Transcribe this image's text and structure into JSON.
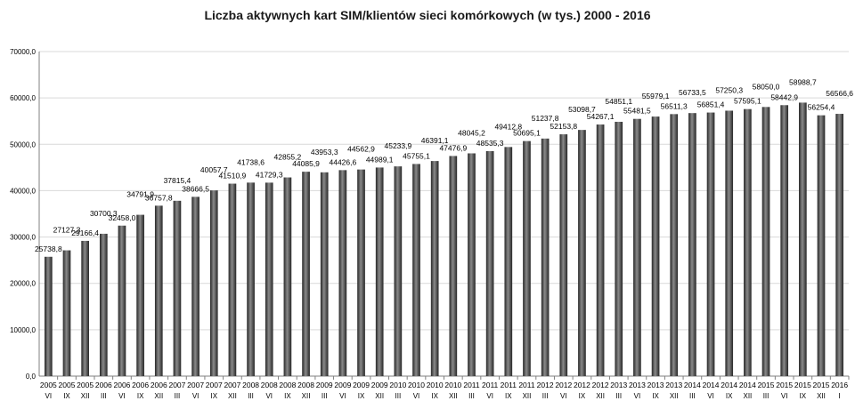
{
  "chart_data": {
    "type": "bar",
    "title": "Liczba aktywnych kart SIM/klientów sieci komórkowych (w tys.) 2000 - 2016",
    "xlabel": "",
    "ylabel": "",
    "ylim": [
      0,
      70000
    ],
    "y_ticks": [
      "0,0",
      "10000,0",
      "20000,0",
      "30000,0",
      "40000,0",
      "50000,0",
      "60000,0",
      "70000,0"
    ],
    "grid": "horizontal",
    "legend": "none",
    "colors": {
      "bar": "#4a4a4a",
      "bar_dark": "#262626",
      "bar_light": "#8a8a8a",
      "grid": "#d9d9d9",
      "axis": "#808080"
    },
    "categories": [
      {
        "year": "2005",
        "quarter": "VI"
      },
      {
        "year": "2005",
        "quarter": "IX"
      },
      {
        "year": "2005",
        "quarter": "XII"
      },
      {
        "year": "2006",
        "quarter": "III"
      },
      {
        "year": "2006",
        "quarter": "VI"
      },
      {
        "year": "2006",
        "quarter": "IX"
      },
      {
        "year": "2006",
        "quarter": "XII"
      },
      {
        "year": "2007",
        "quarter": "III"
      },
      {
        "year": "2007",
        "quarter": "VI"
      },
      {
        "year": "2007",
        "quarter": "IX"
      },
      {
        "year": "2007",
        "quarter": "XII"
      },
      {
        "year": "2008",
        "quarter": "III"
      },
      {
        "year": "2008",
        "quarter": "VI"
      },
      {
        "year": "2008",
        "quarter": "IX"
      },
      {
        "year": "2008",
        "quarter": "XII"
      },
      {
        "year": "2009",
        "quarter": "III"
      },
      {
        "year": "2009",
        "quarter": "VI"
      },
      {
        "year": "2009",
        "quarter": "IX"
      },
      {
        "year": "2009",
        "quarter": "XII"
      },
      {
        "year": "2010",
        "quarter": "III"
      },
      {
        "year": "2010",
        "quarter": "VI"
      },
      {
        "year": "2010",
        "quarter": "IX"
      },
      {
        "year": "2010",
        "quarter": "XII"
      },
      {
        "year": "2011",
        "quarter": "III"
      },
      {
        "year": "2011",
        "quarter": "VI"
      },
      {
        "year": "2011",
        "quarter": "IX"
      },
      {
        "year": "2011",
        "quarter": "XII"
      },
      {
        "year": "2012",
        "quarter": "III"
      },
      {
        "year": "2012",
        "quarter": "VI"
      },
      {
        "year": "2012",
        "quarter": "IX"
      },
      {
        "year": "2012",
        "quarter": "XII"
      },
      {
        "year": "2013",
        "quarter": "III"
      },
      {
        "year": "2013",
        "quarter": "VI"
      },
      {
        "year": "2013",
        "quarter": "IX"
      },
      {
        "year": "2013",
        "quarter": "XII"
      },
      {
        "year": "2014",
        "quarter": "III"
      },
      {
        "year": "2014",
        "quarter": "VI"
      },
      {
        "year": "2014",
        "quarter": "IX"
      },
      {
        "year": "2014",
        "quarter": "XII"
      },
      {
        "year": "2015",
        "quarter": "III"
      },
      {
        "year": "2015",
        "quarter": "VI"
      },
      {
        "year": "2015",
        "quarter": "IX"
      },
      {
        "year": "2015",
        "quarter": "XII"
      },
      {
        "year": "2016",
        "quarter": "I"
      }
    ],
    "values": [
      25738.8,
      27127.3,
      29166.4,
      30700.3,
      32458.0,
      34791.9,
      36757.8,
      37815.4,
      38666.5,
      40057.7,
      41510.9,
      41738.6,
      41729.3,
      42855.2,
      44085.9,
      43953.3,
      44426.6,
      44562.9,
      44989.1,
      45233.9,
      45755.1,
      46391.1,
      47476.9,
      48045.2,
      48535.3,
      49412.8,
      50695.1,
      51237.8,
      52153.8,
      53098.7,
      54267.1,
      54851.1,
      55481.5,
      55979.1,
      56511.3,
      56733.5,
      56851.4,
      57250.3,
      57595.1,
      58050.0,
      58442.9,
      58988.7,
      56254.4,
      56566.6
    ],
    "value_labels": [
      "25738,8",
      "27127,3",
      "29166,4",
      "30700,3",
      "32458,0",
      "34791,9",
      "36757,8",
      "37815,4",
      "38666,5",
      "40057,7",
      "41510,9",
      "41738,6",
      "41729,3",
      "42855,2",
      "44085,9",
      "43953,3",
      "44426,6",
      "44562,9",
      "44989,1",
      "45233,9",
      "45755,1",
      "46391,1",
      "47476,9",
      "48045,2",
      "48535,3",
      "49412,8",
      "50695,1",
      "51237,8",
      "52153,8",
      "53098,7",
      "54267,1",
      "54851,1",
      "55481,5",
      "55979,1",
      "56511,3",
      "56733,5",
      "56851,4",
      "57250,3",
      "57595,1",
      "58050,0",
      "58442,9",
      "58988,7",
      "56254,4",
      "56566,6"
    ]
  }
}
